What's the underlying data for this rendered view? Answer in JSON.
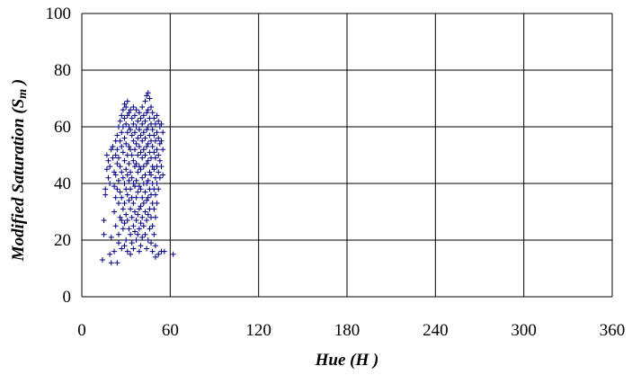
{
  "chart_data": {
    "type": "scatter",
    "title": "",
    "xlabel": {
      "main": "Hue",
      "symbol": "H"
    },
    "ylabel": {
      "main": "Modified Saturation",
      "symbol": "S",
      "subscript": "m"
    },
    "xlim": [
      0,
      360
    ],
    "ylim": [
      0,
      100
    ],
    "xticks": [
      "0",
      "60",
      "120",
      "180",
      "240",
      "300",
      "360"
    ],
    "yticks": [
      "0",
      "20",
      "40",
      "60",
      "80",
      "100"
    ],
    "grid": true,
    "marker": "+",
    "marker_color": "#000080",
    "points": [
      [
        14,
        13
      ],
      [
        15,
        27
      ],
      [
        15,
        22
      ],
      [
        16,
        38
      ],
      [
        16,
        36
      ],
      [
        17,
        45
      ],
      [
        17,
        50
      ],
      [
        18,
        48
      ],
      [
        18,
        42
      ],
      [
        19,
        40
      ],
      [
        19,
        46
      ],
      [
        19,
        15
      ],
      [
        20,
        52
      ],
      [
        20,
        12
      ],
      [
        20,
        21
      ],
      [
        21,
        49
      ],
      [
        21,
        53
      ],
      [
        22,
        44
      ],
      [
        22,
        39
      ],
      [
        22,
        30
      ],
      [
        22,
        16
      ],
      [
        23,
        55
      ],
      [
        23,
        50
      ],
      [
        23,
        43
      ],
      [
        23,
        35
      ],
      [
        23,
        25
      ],
      [
        24,
        57
      ],
      [
        24,
        52
      ],
      [
        24,
        47
      ],
      [
        24,
        38
      ],
      [
        24,
        12
      ],
      [
        25,
        60
      ],
      [
        25,
        49
      ],
      [
        25,
        41
      ],
      [
        25,
        33
      ],
      [
        25,
        22
      ],
      [
        25,
        19
      ],
      [
        26,
        62
      ],
      [
        26,
        55
      ],
      [
        26,
        46
      ],
      [
        26,
        37
      ],
      [
        26,
        28
      ],
      [
        27,
        64
      ],
      [
        27,
        58
      ],
      [
        27,
        53
      ],
      [
        27,
        44
      ],
      [
        27,
        35
      ],
      [
        27,
        27
      ],
      [
        27,
        17
      ],
      [
        28,
        66
      ],
      [
        28,
        60
      ],
      [
        28,
        51
      ],
      [
        28,
        42
      ],
      [
        28,
        31
      ],
      [
        28,
        24
      ],
      [
        29,
        68
      ],
      [
        29,
        63
      ],
      [
        29,
        56
      ],
      [
        29,
        48
      ],
      [
        29,
        40
      ],
      [
        29,
        33
      ],
      [
        29,
        26
      ],
      [
        29,
        18
      ],
      [
        30,
        67
      ],
      [
        30,
        61
      ],
      [
        30,
        54
      ],
      [
        30,
        45
      ],
      [
        30,
        38
      ],
      [
        30,
        29
      ],
      [
        30,
        20
      ],
      [
        31,
        69
      ],
      [
        31,
        64
      ],
      [
        31,
        58
      ],
      [
        31,
        50
      ],
      [
        31,
        43
      ],
      [
        31,
        36
      ],
      [
        31,
        27
      ],
      [
        31,
        16
      ],
      [
        32,
        65
      ],
      [
        32,
        60
      ],
      [
        32,
        53
      ],
      [
        32,
        47
      ],
      [
        32,
        41
      ],
      [
        32,
        34
      ],
      [
        32,
        24
      ],
      [
        33,
        66
      ],
      [
        33,
        59
      ],
      [
        33,
        52
      ],
      [
        33,
        44
      ],
      [
        33,
        38
      ],
      [
        33,
        31
      ],
      [
        33,
        22
      ],
      [
        33,
        15
      ],
      [
        34,
        63
      ],
      [
        34,
        57
      ],
      [
        34,
        50
      ],
      [
        34,
        42
      ],
      [
        34,
        35
      ],
      [
        34,
        28
      ],
      [
        34,
        19
      ],
      [
        35,
        67
      ],
      [
        35,
        61
      ],
      [
        35,
        55
      ],
      [
        35,
        48
      ],
      [
        35,
        40
      ],
      [
        35,
        33
      ],
      [
        35,
        25
      ],
      [
        35,
        17
      ],
      [
        36,
        64
      ],
      [
        36,
        58
      ],
      [
        36,
        52
      ],
      [
        36,
        46
      ],
      [
        36,
        39
      ],
      [
        36,
        30
      ],
      [
        36,
        23
      ],
      [
        37,
        66
      ],
      [
        37,
        60
      ],
      [
        37,
        54
      ],
      [
        37,
        47
      ],
      [
        37,
        41
      ],
      [
        37,
        35
      ],
      [
        37,
        27
      ],
      [
        37,
        20
      ],
      [
        38,
        62
      ],
      [
        38,
        56
      ],
      [
        38,
        50
      ],
      [
        38,
        44
      ],
      [
        38,
        37
      ],
      [
        38,
        29
      ],
      [
        38,
        22
      ],
      [
        39,
        65
      ],
      [
        39,
        59
      ],
      [
        39,
        53
      ],
      [
        39,
        46
      ],
      [
        39,
        39
      ],
      [
        39,
        31
      ],
      [
        39,
        24
      ],
      [
        39,
        16
      ],
      [
        40,
        63
      ],
      [
        40,
        57
      ],
      [
        40,
        51
      ],
      [
        40,
        45
      ],
      [
        40,
        38
      ],
      [
        40,
        32
      ],
      [
        40,
        26
      ],
      [
        40,
        18
      ],
      [
        41,
        67
      ],
      [
        41,
        61
      ],
      [
        41,
        55
      ],
      [
        41,
        49
      ],
      [
        41,
        42
      ],
      [
        41,
        35
      ],
      [
        41,
        28
      ],
      [
        41,
        21
      ],
      [
        42,
        64
      ],
      [
        42,
        58
      ],
      [
        42,
        52
      ],
      [
        42,
        46
      ],
      [
        42,
        40
      ],
      [
        42,
        33
      ],
      [
        42,
        25
      ],
      [
        43,
        69
      ],
      [
        43,
        62
      ],
      [
        43,
        56
      ],
      [
        43,
        50
      ],
      [
        43,
        43
      ],
      [
        43,
        37
      ],
      [
        43,
        30
      ],
      [
        43,
        22
      ],
      [
        44,
        71
      ],
      [
        44,
        65
      ],
      [
        44,
        59
      ],
      [
        44,
        53
      ],
      [
        44,
        47
      ],
      [
        44,
        40
      ],
      [
        44,
        34
      ],
      [
        44,
        27
      ],
      [
        44,
        17
      ],
      [
        45,
        72
      ],
      [
        45,
        66
      ],
      [
        45,
        60
      ],
      [
        45,
        54
      ],
      [
        45,
        48
      ],
      [
        45,
        41
      ],
      [
        45,
        35
      ],
      [
        45,
        29
      ],
      [
        45,
        20
      ],
      [
        46,
        70
      ],
      [
        46,
        63
      ],
      [
        46,
        57
      ],
      [
        46,
        51
      ],
      [
        46,
        44
      ],
      [
        46,
        38
      ],
      [
        46,
        31
      ],
      [
        46,
        24
      ],
      [
        47,
        67
      ],
      [
        47,
        61
      ],
      [
        47,
        55
      ],
      [
        47,
        49
      ],
      [
        47,
        43
      ],
      [
        47,
        36
      ],
      [
        47,
        28
      ],
      [
        47,
        19
      ],
      [
        48,
        65
      ],
      [
        48,
        59
      ],
      [
        48,
        53
      ],
      [
        48,
        46
      ],
      [
        48,
        40
      ],
      [
        48,
        33
      ],
      [
        48,
        25
      ],
      [
        48,
        16
      ],
      [
        49,
        63
      ],
      [
        49,
        57
      ],
      [
        49,
        51
      ],
      [
        49,
        45
      ],
      [
        49,
        38
      ],
      [
        49,
        31
      ],
      [
        49,
        22
      ],
      [
        50,
        61
      ],
      [
        50,
        55
      ],
      [
        50,
        49
      ],
      [
        50,
        42
      ],
      [
        50,
        36
      ],
      [
        50,
        28
      ],
      [
        50,
        18
      ],
      [
        50,
        14
      ],
      [
        51,
        64
      ],
      [
        51,
        58
      ],
      [
        51,
        52
      ],
      [
        51,
        46
      ],
      [
        51,
        40
      ],
      [
        51,
        33
      ],
      [
        52,
        62
      ],
      [
        52,
        56
      ],
      [
        52,
        50
      ],
      [
        52,
        44
      ],
      [
        52,
        38
      ],
      [
        52,
        15
      ],
      [
        53,
        60
      ],
      [
        53,
        54
      ],
      [
        53,
        48
      ],
      [
        53,
        42
      ],
      [
        54,
        61
      ],
      [
        54,
        55
      ],
      [
        54,
        46
      ],
      [
        54,
        16
      ],
      [
        55,
        58
      ],
      [
        55,
        52
      ],
      [
        55,
        43
      ],
      [
        56,
        16
      ],
      [
        62,
        15
      ]
    ]
  }
}
